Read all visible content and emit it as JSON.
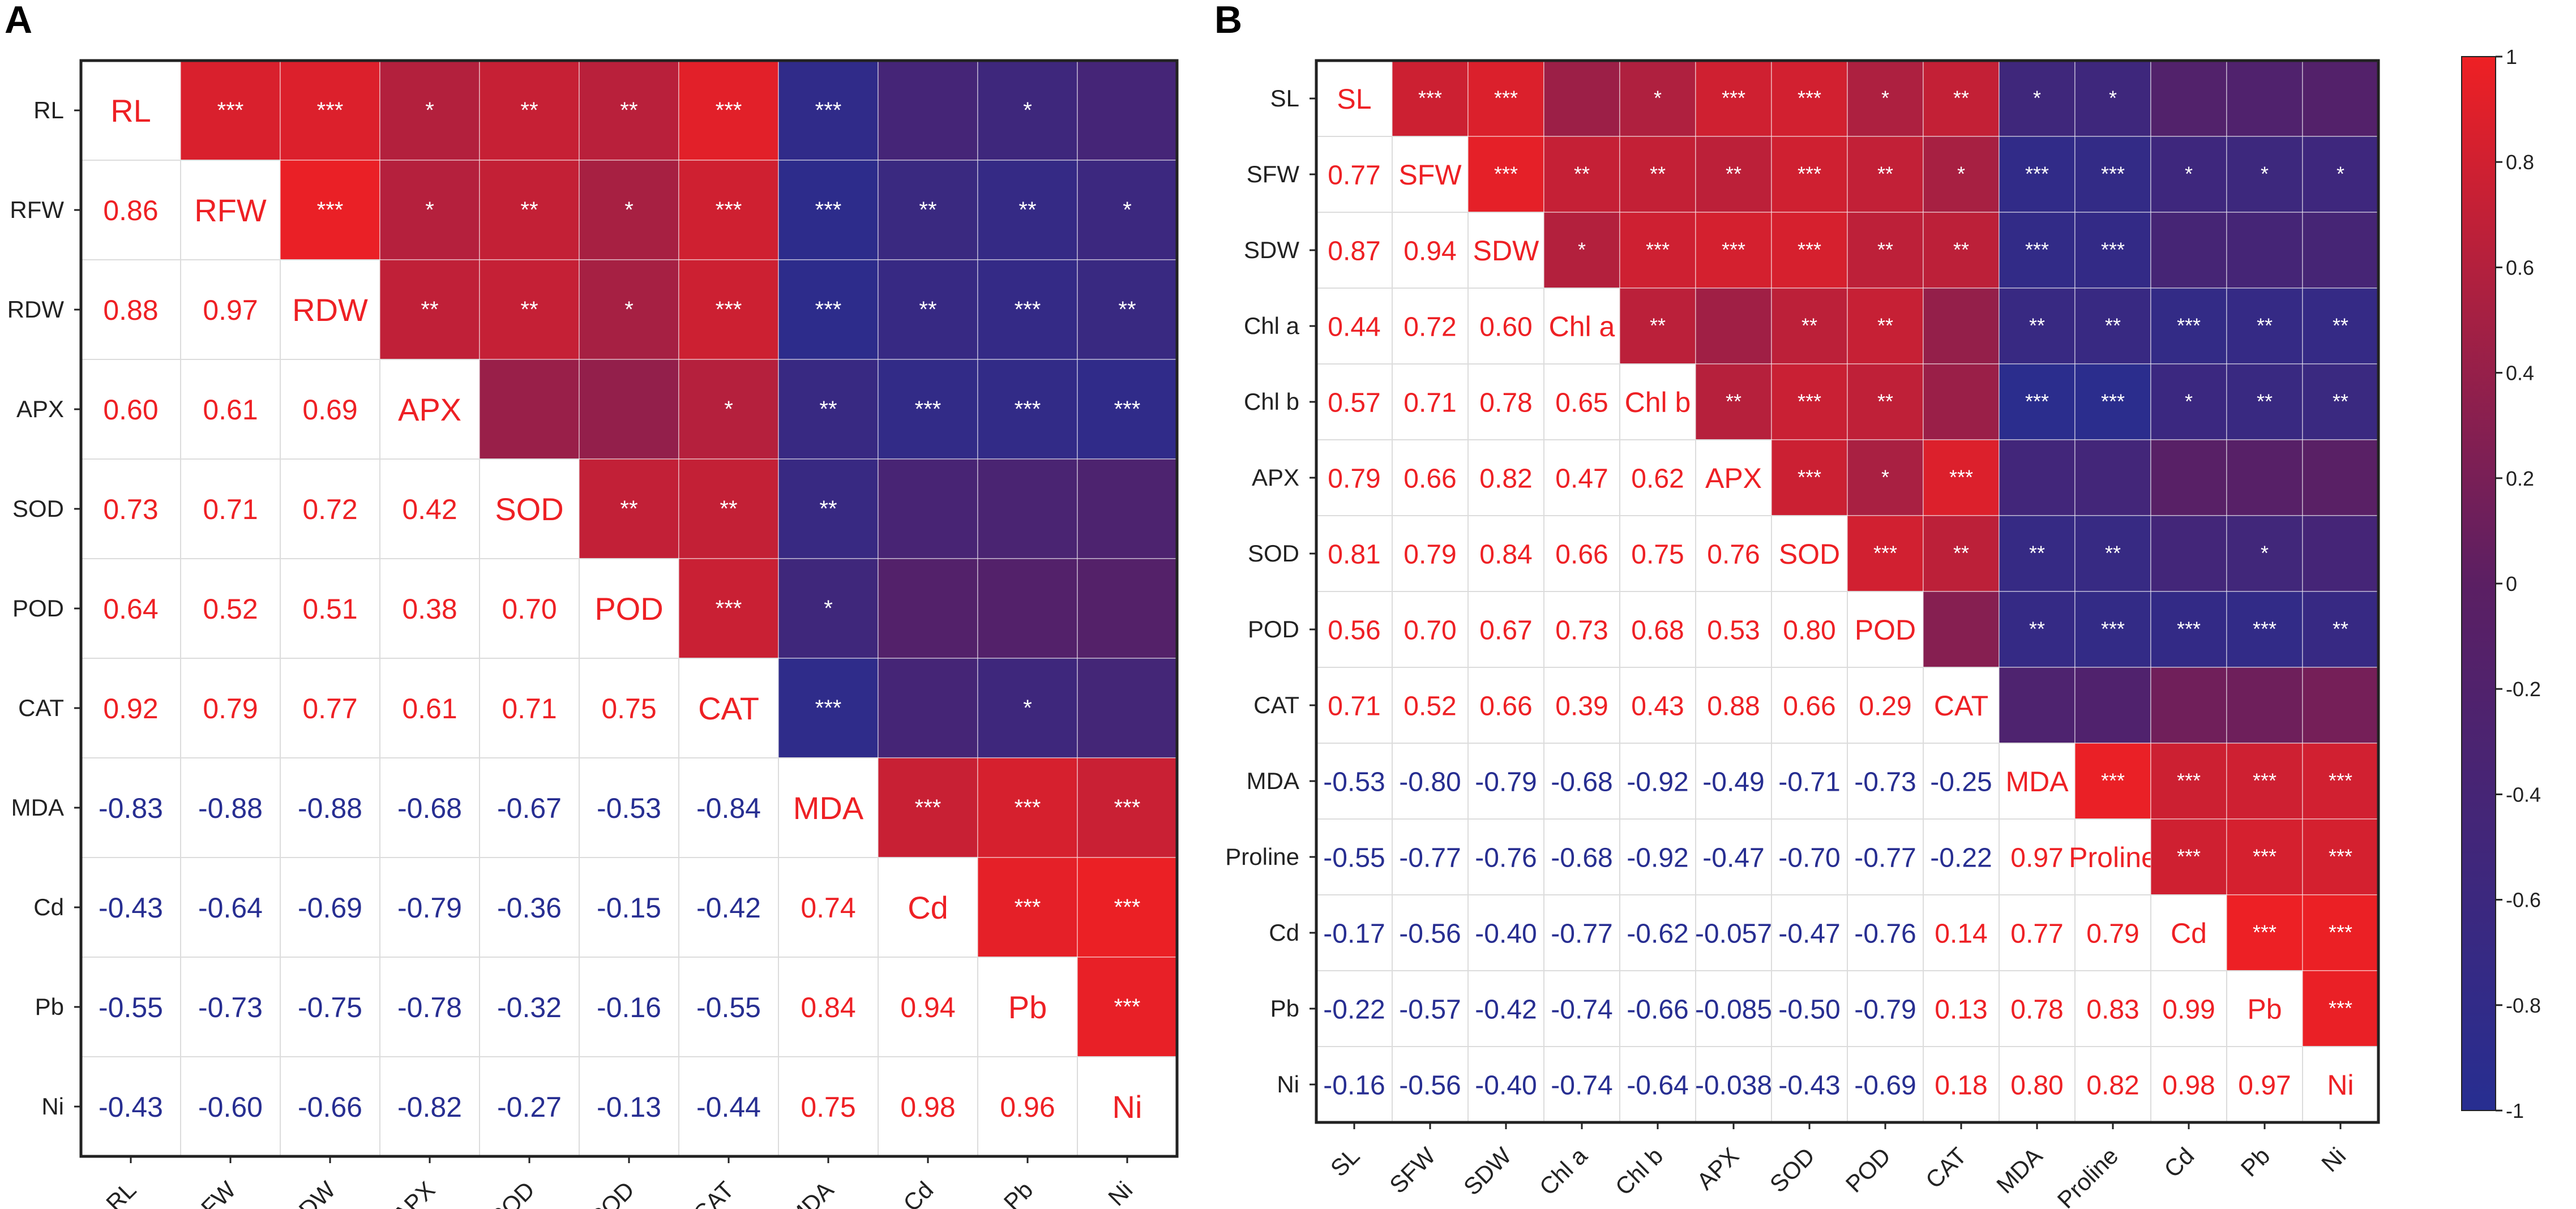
{
  "colors": {
    "positive": "#ee2024",
    "negative": "#272e91",
    "neutral": "#5b1f63"
  },
  "colorbar": {
    "ticks": [
      "1",
      "0.8",
      "0.6",
      "0.4",
      "0.2",
      "0",
      "-0.2",
      "-0.4",
      "-0.6",
      "-0.8",
      "-1"
    ]
  },
  "chart_data": [
    {
      "type": "heatmap",
      "panel": "A",
      "variables": [
        "RL",
        "RFW",
        "RDW",
        "APX",
        "SOD",
        "POD",
        "CAT",
        "MDA",
        "Cd",
        "Pb",
        "Ni"
      ],
      "lower_values": [
        [],
        [
          "0.86"
        ],
        [
          "0.88",
          "0.97"
        ],
        [
          "0.60",
          "0.61",
          "0.69"
        ],
        [
          "0.73",
          "0.71",
          "0.72",
          "0.42"
        ],
        [
          "0.64",
          "0.52",
          "0.51",
          "0.38",
          "0.70"
        ],
        [
          "0.92",
          "0.79",
          "0.77",
          "0.61",
          "0.71",
          "0.75"
        ],
        [
          "-0.83",
          "-0.88",
          "-0.88",
          "-0.68",
          "-0.67",
          "-0.53",
          "-0.84"
        ],
        [
          "-0.43",
          "-0.64",
          "-0.69",
          "-0.79",
          "-0.36",
          "-0.15",
          "-0.42",
          "0.74"
        ],
        [
          "-0.55",
          "-0.73",
          "-0.75",
          "-0.78",
          "-0.32",
          "-0.16",
          "-0.55",
          "0.84",
          "0.94"
        ],
        [
          "-0.43",
          "-0.60",
          "-0.66",
          "-0.82",
          "-0.27",
          "-0.13",
          "-0.44",
          "0.75",
          "0.98",
          "0.96"
        ]
      ],
      "significance": [
        [
          "",
          "***",
          "***",
          "*",
          "**",
          "**",
          "***",
          "***",
          "",
          "*",
          ""
        ],
        [
          "",
          "",
          "***",
          "*",
          "**",
          "*",
          "***",
          "***",
          "**",
          "**",
          "*"
        ],
        [
          "",
          "",
          "",
          "**",
          "**",
          "*",
          "***",
          "***",
          "**",
          "***",
          "**"
        ],
        [
          "",
          "",
          "",
          "",
          "",
          "",
          "*",
          "**",
          "***",
          "***",
          "***"
        ],
        [
          "",
          "",
          "",
          "",
          "",
          "**",
          "**",
          "**",
          "",
          "",
          ""
        ],
        [
          "",
          "",
          "",
          "",
          "",
          "",
          "***",
          "*",
          "",
          "",
          ""
        ],
        [
          "",
          "",
          "",
          "",
          "",
          "",
          "",
          "***",
          "",
          "*",
          ""
        ],
        [
          "",
          "",
          "",
          "",
          "",
          "",
          "",
          "",
          "***",
          "***",
          "***"
        ],
        [
          "",
          "",
          "",
          "",
          "",
          "",
          "",
          "",
          "",
          "***",
          "***"
        ],
        [
          "",
          "",
          "",
          "",
          "",
          "",
          "",
          "",
          "",
          "",
          "***"
        ],
        [
          "",
          "",
          "",
          "",
          "",
          "",
          "",
          "",
          "",
          "",
          ""
        ]
      ]
    },
    {
      "type": "heatmap",
      "panel": "B",
      "variables": [
        "SL",
        "SFW",
        "SDW",
        "Chl a",
        "Chl b",
        "APX",
        "SOD",
        "POD",
        "CAT",
        "MDA",
        "Proline",
        "Cd",
        "Pb",
        "Ni"
      ],
      "lower_values": [
        [],
        [
          "0.77"
        ],
        [
          "0.87",
          "0.94"
        ],
        [
          "0.44",
          "0.72",
          "0.60"
        ],
        [
          "0.57",
          "0.71",
          "0.78",
          "0.65"
        ],
        [
          "0.79",
          "0.66",
          "0.82",
          "0.47",
          "0.62"
        ],
        [
          "0.81",
          "0.79",
          "0.84",
          "0.66",
          "0.75",
          "0.76"
        ],
        [
          "0.56",
          "0.70",
          "0.67",
          "0.73",
          "0.68",
          "0.53",
          "0.80"
        ],
        [
          "0.71",
          "0.52",
          "0.66",
          "0.39",
          "0.43",
          "0.88",
          "0.66",
          "0.29"
        ],
        [
          "-0.53",
          "-0.80",
          "-0.79",
          "-0.68",
          "-0.92",
          "-0.49",
          "-0.71",
          "-0.73",
          "-0.25"
        ],
        [
          "-0.55",
          "-0.77",
          "-0.76",
          "-0.68",
          "-0.92",
          "-0.47",
          "-0.70",
          "-0.77",
          "-0.22",
          "0.97"
        ],
        [
          "-0.17",
          "-0.56",
          "-0.40",
          "-0.77",
          "-0.62",
          "-0.057",
          "-0.47",
          "-0.76",
          "0.14",
          "0.77",
          "0.79"
        ],
        [
          "-0.22",
          "-0.57",
          "-0.42",
          "-0.74",
          "-0.66",
          "-0.085",
          "-0.50",
          "-0.79",
          "0.13",
          "0.78",
          "0.83",
          "0.99"
        ],
        [
          "-0.16",
          "-0.56",
          "-0.40",
          "-0.74",
          "-0.64",
          "-0.038",
          "-0.43",
          "-0.69",
          "0.18",
          "0.80",
          "0.82",
          "0.98",
          "0.97"
        ]
      ],
      "significance": [
        [
          "",
          "***",
          "***",
          "",
          "*",
          "***",
          "***",
          "*",
          "**",
          "*",
          "*",
          "",
          "",
          ""
        ],
        [
          "",
          "",
          "***",
          "**",
          "**",
          "**",
          "***",
          "**",
          "*",
          "***",
          "***",
          "*",
          "*",
          "*"
        ],
        [
          "",
          "",
          "",
          "*",
          "***",
          "***",
          "***",
          "**",
          "**",
          "***",
          "***",
          "",
          "",
          ""
        ],
        [
          "",
          "",
          "",
          "",
          "**",
          "",
          "**",
          "**",
          "",
          "**",
          "**",
          "***",
          "**",
          "**"
        ],
        [
          "",
          "",
          "",
          "",
          "",
          "**",
          "***",
          "**",
          "",
          "***",
          "***",
          "*",
          "**",
          "**"
        ],
        [
          "",
          "",
          "",
          "",
          "",
          "",
          "***",
          "*",
          "***",
          "",
          "",
          "",
          "",
          ""
        ],
        [
          "",
          "",
          "",
          "",
          "",
          "",
          "",
          "***",
          "**",
          "**",
          "**",
          "",
          "*",
          ""
        ],
        [
          "",
          "",
          "",
          "",
          "",
          "",
          "",
          "",
          "",
          "**",
          "***",
          "***",
          "***",
          "**"
        ],
        [
          "",
          "",
          "",
          "",
          "",
          "",
          "",
          "",
          "",
          "",
          "",
          "",
          "",
          ""
        ],
        [
          "",
          "",
          "",
          "",
          "",
          "",
          "",
          "",
          "",
          "",
          "***",
          "***",
          "***",
          "***"
        ],
        [
          "",
          "",
          "",
          "",
          "",
          "",
          "",
          "",
          "",
          "",
          "",
          "***",
          "***",
          "***"
        ],
        [
          "",
          "",
          "",
          "",
          "",
          "",
          "",
          "",
          "",
          "",
          "",
          "",
          "***",
          "***"
        ],
        [
          "",
          "",
          "",
          "",
          "",
          "",
          "",
          "",
          "",
          "",
          "",
          "",
          "",
          "***"
        ],
        [
          "",
          "",
          "",
          "",
          "",
          "",
          "",
          "",
          "",
          "",
          "",
          "",
          "",
          ""
        ]
      ]
    }
  ]
}
